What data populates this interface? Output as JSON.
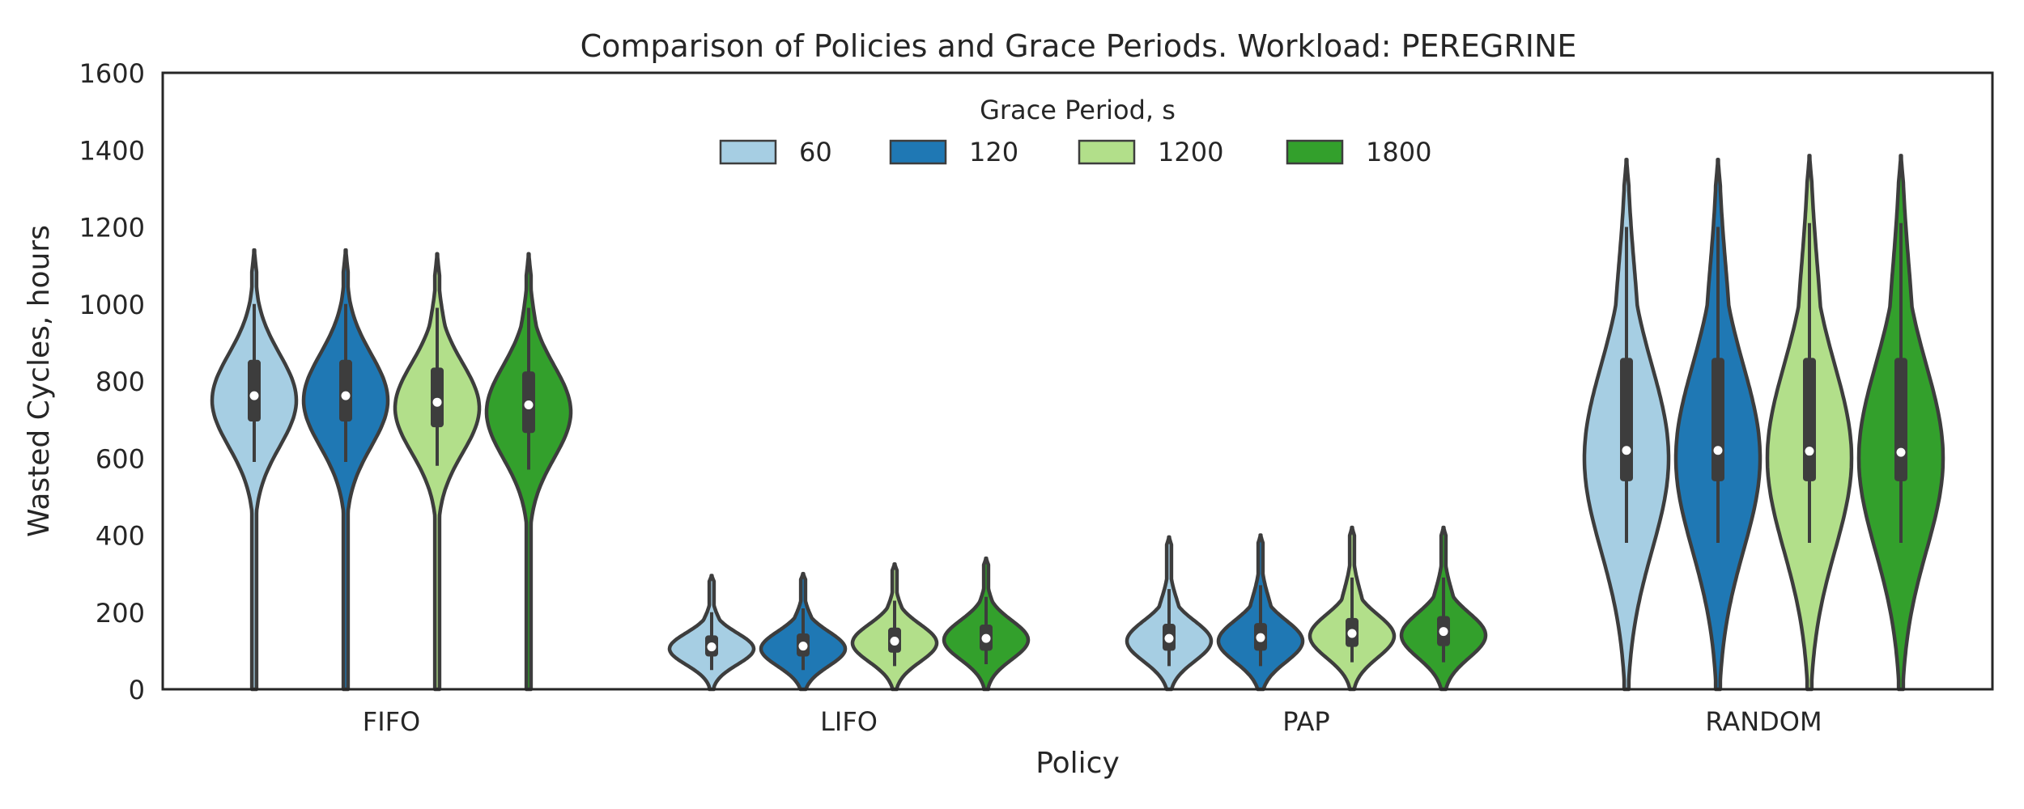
{
  "chart_data": {
    "type": "violin",
    "title": "Comparison of Policies and Grace Periods. Workload: PEREGRINE",
    "xlabel": "Policy",
    "ylabel": "Wasted Cycles, hours",
    "ylim": [
      0,
      1600
    ],
    "yticks": [
      0,
      200,
      400,
      600,
      800,
      1000,
      1200,
      1400,
      1600
    ],
    "categories": [
      "FIFO",
      "LIFO",
      "PAP",
      "RANDOM"
    ],
    "legend": {
      "title": "Grace Period, s",
      "placement": "upper-center",
      "entries": [
        "60",
        "120",
        "1200",
        "1800"
      ]
    },
    "colors": [
      "#a6cee3",
      "#1f78b4",
      "#b2df8a",
      "#33a02c"
    ],
    "series": [
      {
        "name": "60",
        "violins": [
          {
            "category": "FIFO",
            "min": 0,
            "max": 1140,
            "q1": 695,
            "median": 762,
            "q3": 855,
            "mode": 750,
            "lower": 590,
            "upper": 1000
          },
          {
            "category": "LIFO",
            "min": 0,
            "max": 295,
            "q1": 85,
            "median": 110,
            "q3": 140,
            "mode": 105,
            "lower": 50,
            "upper": 200
          },
          {
            "category": "PAP",
            "min": 0,
            "max": 395,
            "q1": 100,
            "median": 132,
            "q3": 170,
            "mode": 125,
            "lower": 60,
            "upper": 260
          },
          {
            "category": "RANDOM",
            "min": 0,
            "max": 1375,
            "q1": 540,
            "median": 620,
            "q3": 860,
            "mode": 600,
            "lower": 380,
            "upper": 1200
          }
        ]
      },
      {
        "name": "120",
        "violins": [
          {
            "category": "FIFO",
            "min": 0,
            "max": 1140,
            "q1": 695,
            "median": 762,
            "q3": 855,
            "mode": 750,
            "lower": 590,
            "upper": 1000
          },
          {
            "category": "LIFO",
            "min": 0,
            "max": 300,
            "q1": 85,
            "median": 112,
            "q3": 145,
            "mode": 105,
            "lower": 50,
            "upper": 210
          },
          {
            "category": "PAP",
            "min": 0,
            "max": 400,
            "q1": 100,
            "median": 134,
            "q3": 172,
            "mode": 125,
            "lower": 60,
            "upper": 270
          },
          {
            "category": "RANDOM",
            "min": 0,
            "max": 1375,
            "q1": 540,
            "median": 620,
            "q3": 860,
            "mode": 600,
            "lower": 380,
            "upper": 1200
          }
        ]
      },
      {
        "name": "1200",
        "violins": [
          {
            "category": "FIFO",
            "min": 0,
            "max": 1130,
            "q1": 680,
            "median": 745,
            "q3": 835,
            "mode": 730,
            "lower": 580,
            "upper": 990
          },
          {
            "category": "LIFO",
            "min": 0,
            "max": 325,
            "q1": 95,
            "median": 125,
            "q3": 160,
            "mode": 120,
            "lower": 60,
            "upper": 230
          },
          {
            "category": "PAP",
            "min": 0,
            "max": 420,
            "q1": 110,
            "median": 145,
            "q3": 185,
            "mode": 138,
            "lower": 70,
            "upper": 290
          },
          {
            "category": "RANDOM",
            "min": 0,
            "max": 1385,
            "q1": 540,
            "median": 618,
            "q3": 860,
            "mode": 600,
            "lower": 380,
            "upper": 1210
          }
        ]
      },
      {
        "name": "1800",
        "violins": [
          {
            "category": "FIFO",
            "min": 0,
            "max": 1130,
            "q1": 665,
            "median": 738,
            "q3": 825,
            "mode": 720,
            "lower": 570,
            "upper": 990
          },
          {
            "category": "LIFO",
            "min": 0,
            "max": 340,
            "q1": 100,
            "median": 132,
            "q3": 168,
            "mode": 128,
            "lower": 65,
            "upper": 240
          },
          {
            "category": "PAP",
            "min": 0,
            "max": 420,
            "q1": 112,
            "median": 150,
            "q3": 190,
            "mode": 140,
            "lower": 70,
            "upper": 290
          },
          {
            "category": "RANDOM",
            "min": 0,
            "max": 1385,
            "q1": 540,
            "median": 615,
            "q3": 860,
            "mode": 600,
            "lower": 380,
            "upper": 1210
          }
        ]
      }
    ]
  }
}
